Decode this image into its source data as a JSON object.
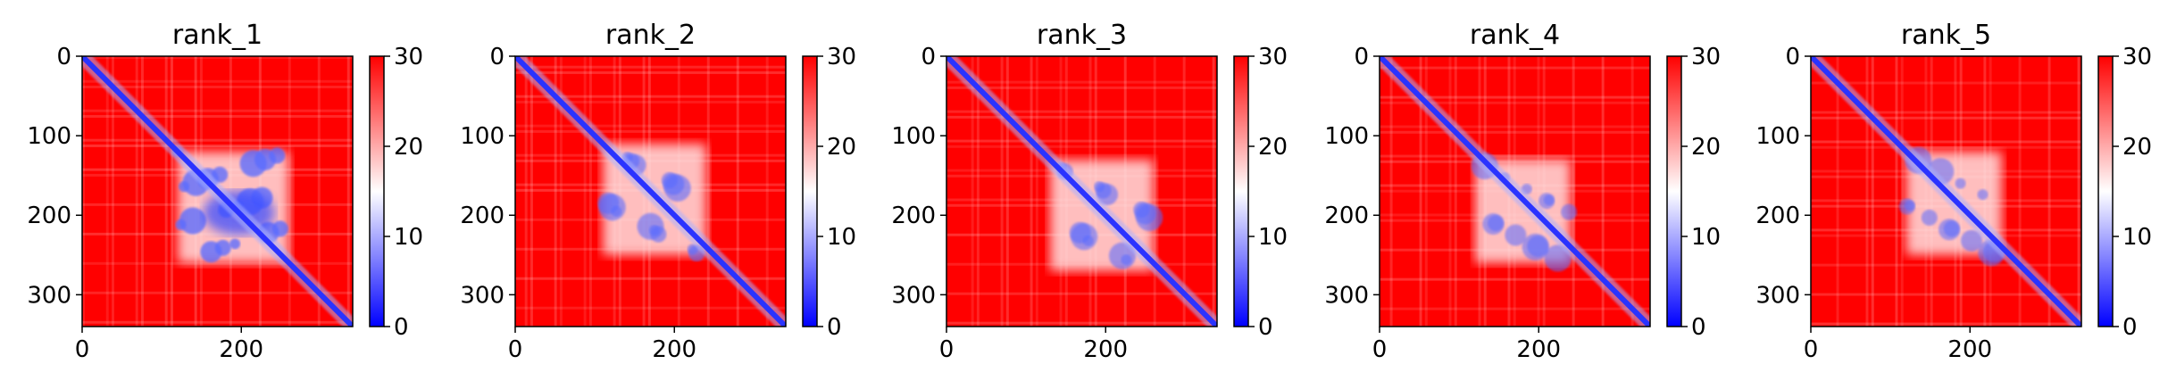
{
  "chart_data": [
    {
      "type": "heatmap",
      "title": "rank_1",
      "x_ticks": [
        0,
        200
      ],
      "y_ticks": [
        0,
        100,
        200,
        300
      ],
      "xlim": [
        0,
        340
      ],
      "ylim": [
        340,
        0
      ],
      "colorbar": {
        "ticks": [
          0,
          10,
          20,
          30
        ],
        "min": 0,
        "max": 30,
        "colormap": "bwr"
      },
      "matrix_size": 340,
      "low_value_region": {
        "x_range": [
          120,
          260
        ],
        "y_range": [
          120,
          260
        ],
        "intensity": 0.95
      },
      "diagonal_value": 0
    },
    {
      "type": "heatmap",
      "title": "rank_2",
      "x_ticks": [
        0,
        200
      ],
      "y_ticks": [
        0,
        100,
        200,
        300
      ],
      "xlim": [
        0,
        340
      ],
      "ylim": [
        340,
        0
      ],
      "colorbar": {
        "ticks": [
          0,
          10,
          20,
          30
        ],
        "min": 0,
        "max": 30,
        "colormap": "bwr"
      },
      "matrix_size": 340,
      "low_value_region": {
        "x_range": [
          110,
          240
        ],
        "y_range": [
          110,
          250
        ],
        "intensity": 0.55
      },
      "diagonal_value": 0
    },
    {
      "type": "heatmap",
      "title": "rank_3",
      "x_ticks": [
        0,
        200
      ],
      "y_ticks": [
        0,
        100,
        200,
        300
      ],
      "xlim": [
        0,
        340
      ],
      "ylim": [
        340,
        0
      ],
      "colorbar": {
        "ticks": [
          0,
          10,
          20,
          30
        ],
        "min": 0,
        "max": 30,
        "colormap": "bwr"
      },
      "matrix_size": 340,
      "low_value_region": {
        "x_range": [
          130,
          260
        ],
        "y_range": [
          130,
          270
        ],
        "intensity": 0.5
      },
      "diagonal_value": 0
    },
    {
      "type": "heatmap",
      "title": "rank_4",
      "x_ticks": [
        0,
        200
      ],
      "y_ticks": [
        0,
        100,
        200,
        300
      ],
      "xlim": [
        0,
        340
      ],
      "ylim": [
        340,
        0
      ],
      "colorbar": {
        "ticks": [
          0,
          10,
          20,
          30
        ],
        "min": 0,
        "max": 30,
        "colormap": "bwr"
      },
      "matrix_size": 340,
      "low_value_region": {
        "x_range": [
          120,
          240
        ],
        "y_range": [
          130,
          260
        ],
        "intensity": 0.45
      },
      "diagonal_value": 0
    },
    {
      "type": "heatmap",
      "title": "rank_5",
      "x_ticks": [
        0,
        200
      ],
      "y_ticks": [
        0,
        100,
        200,
        300
      ],
      "xlim": [
        0,
        340
      ],
      "ylim": [
        340,
        0
      ],
      "colorbar": {
        "ticks": [
          0,
          10,
          20,
          30
        ],
        "min": 0,
        "max": 30,
        "colormap": "bwr"
      },
      "matrix_size": 340,
      "low_value_region": {
        "x_range": [
          120,
          240
        ],
        "y_range": [
          120,
          250
        ],
        "intensity": 0.45
      },
      "diagonal_value": 0
    }
  ]
}
